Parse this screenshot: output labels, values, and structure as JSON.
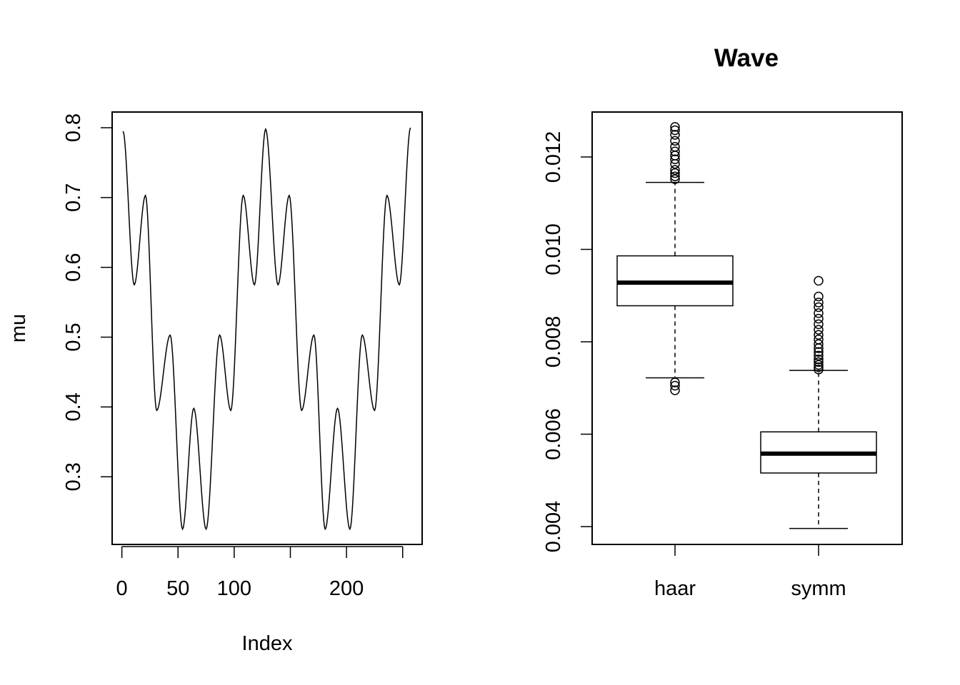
{
  "chart_data": [
    {
      "type": "line",
      "title": "",
      "xlabel": "Index",
      "ylabel": "mu",
      "xlim": [
        1,
        256
      ],
      "ylim": [
        0.2,
        0.8
      ],
      "x_ticks": [
        0,
        50,
        100,
        150,
        200,
        250
      ],
      "x_tick_labels": [
        "0",
        "50",
        "100",
        "",
        "200",
        ""
      ],
      "y_ticks": [
        0.3,
        0.4,
        0.5,
        0.6,
        0.7,
        0.8
      ],
      "y_tick_labels": [
        "0.3",
        "0.4",
        "0.5",
        "0.6",
        "0.7",
        "0.8"
      ],
      "series": [
        {
          "name": "mu",
          "x": [
            1,
            11,
            21,
            31,
            43,
            54,
            64,
            75,
            87,
            97,
            108,
            118,
            128,
            139,
            149,
            160,
            171,
            181,
            192,
            203,
            214,
            225,
            236,
            247,
            257
          ],
          "y": [
            0.795,
            0.575,
            0.703,
            0.395,
            0.503,
            0.225,
            0.398,
            0.225,
            0.503,
            0.395,
            0.703,
            0.575,
            0.798,
            0.575,
            0.703,
            0.395,
            0.503,
            0.225,
            0.398,
            0.225,
            0.503,
            0.395,
            0.703,
            0.575,
            0.8
          ]
        }
      ],
      "grid": false
    },
    {
      "type": "boxplot",
      "title": "Wave",
      "xlabel": "",
      "ylabel": "",
      "ylim": [
        0.0035,
        0.0129
      ],
      "y_ticks": [
        0.004,
        0.006,
        0.008,
        0.01,
        0.012
      ],
      "y_tick_labels": [
        "0.004",
        "0.006",
        "0.008",
        "0.010",
        "0.012"
      ],
      "categories": [
        "haar",
        "symm"
      ],
      "series": [
        {
          "name": "haar",
          "whisker_low": 0.00722,
          "q1": 0.00878,
          "median": 0.00928,
          "q3": 0.00986,
          "whisker_high": 0.01145,
          "outliers": [
            0.00695,
            0.00705,
            0.00712,
            0.01152,
            0.01158,
            0.01165,
            0.01172,
            0.01185,
            0.01195,
            0.01203,
            0.01212,
            0.01222,
            0.01235,
            0.01248,
            0.01258,
            0.01265
          ]
        },
        {
          "name": "symm",
          "whisker_low": 0.00396,
          "q1": 0.00516,
          "median": 0.00558,
          "q3": 0.00605,
          "whisker_high": 0.00738,
          "outliers": [
            0.0074,
            0.00745,
            0.0075,
            0.00756,
            0.00762,
            0.0077,
            0.00778,
            0.00786,
            0.00795,
            0.00805,
            0.00815,
            0.00826,
            0.00838,
            0.0085,
            0.00862,
            0.00875,
            0.00885,
            0.00898,
            0.00932
          ]
        }
      ],
      "grid": false
    }
  ]
}
